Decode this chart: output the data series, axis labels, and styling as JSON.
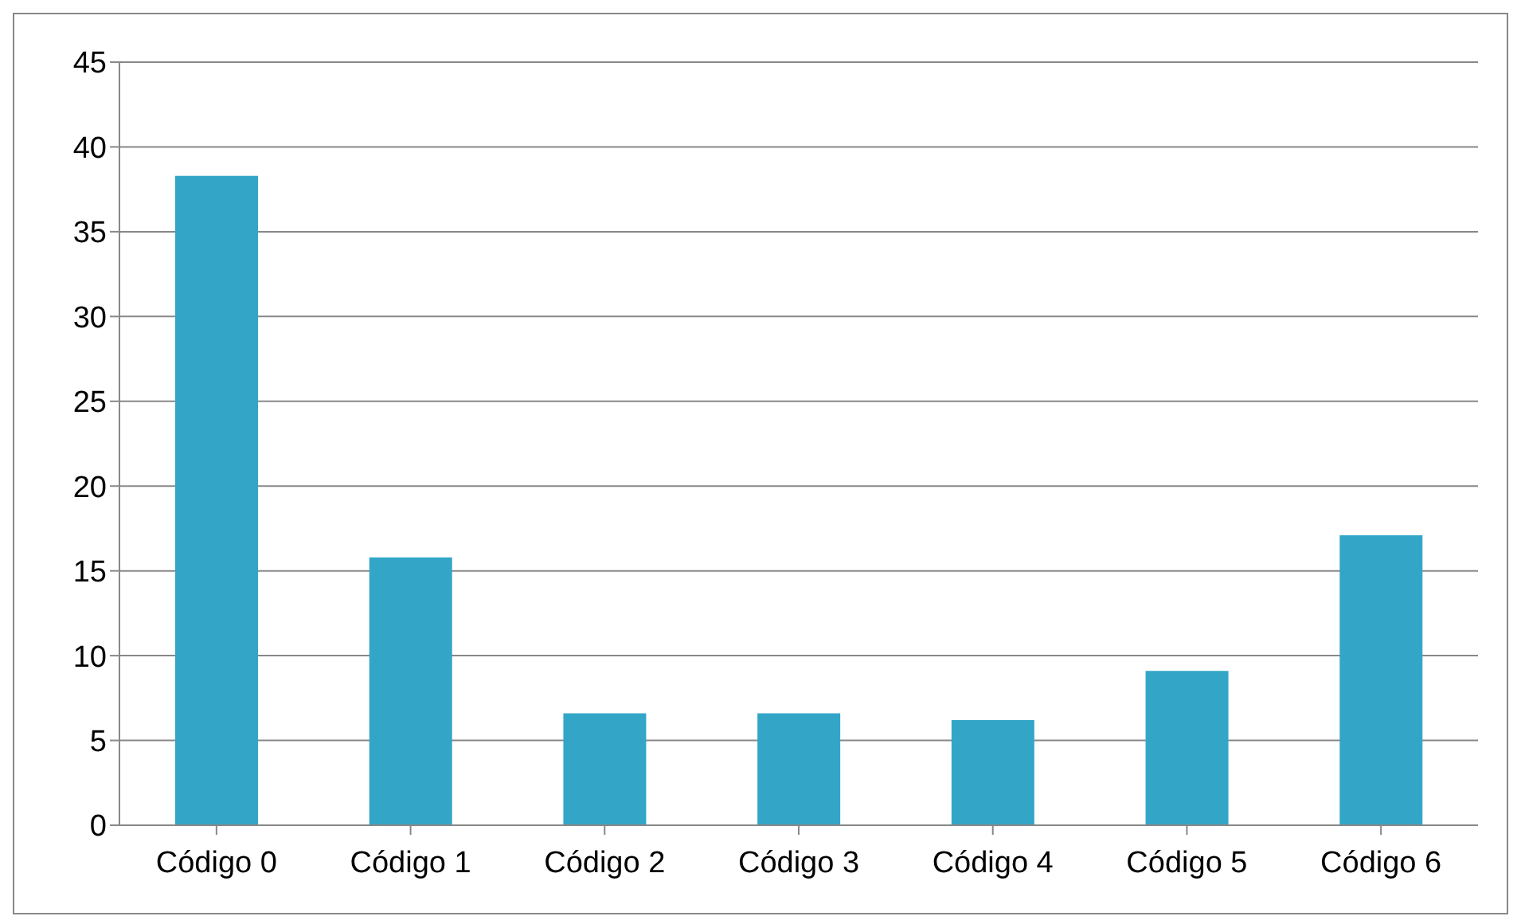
{
  "chart_data": {
    "type": "bar",
    "categories": [
      "Código 0",
      "Código 1",
      "Código 2",
      "Código 3",
      "Código 4",
      "Código 5",
      "Código 6"
    ],
    "values": [
      38.3,
      15.8,
      6.6,
      6.6,
      6.2,
      9.1,
      17.1
    ],
    "color": "#33a6c8",
    "ylim": [
      0,
      45
    ],
    "yticks": [
      0,
      5,
      10,
      15,
      20,
      25,
      30,
      35,
      40,
      45
    ],
    "grid": "y"
  }
}
